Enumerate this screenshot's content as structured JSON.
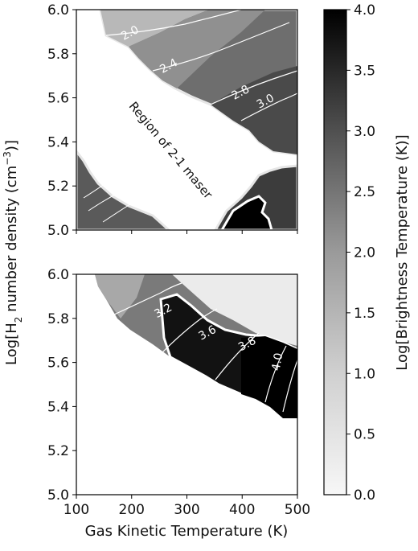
{
  "chart_data": [
    {
      "type": "heatmap",
      "panel": "top",
      "xlim": [
        100,
        500
      ],
      "ylim": [
        5.0,
        6.0
      ],
      "x_ticks": [],
      "y_ticks": [
        "5.0",
        "5.2",
        "5.4",
        "5.6",
        "5.8",
        "6.0"
      ],
      "contour_labels": [
        {
          "text": "2.0",
          "x": 200,
          "y": 5.88
        },
        {
          "text": "2.4",
          "x": 270,
          "y": 5.73
        },
        {
          "text": "2.8",
          "x": 400,
          "y": 5.61
        },
        {
          "text": "3.0",
          "x": 445,
          "y": 5.57
        }
      ],
      "annotation": {
        "text": "Region of 2-1 maser",
        "x": 265,
        "y": 5.35
      },
      "levels": {
        "upper_right_band": 2.4,
        "lower_left_corner": 2.2,
        "lower_right_corner": 4.0,
        "maser_region": 0.0
      }
    },
    {
      "type": "heatmap",
      "panel": "bottom",
      "xlim": [
        100,
        500
      ],
      "ylim": [
        5.0,
        6.0
      ],
      "x_ticks": [
        "100",
        "200",
        "300",
        "400",
        "500"
      ],
      "y_ticks": [
        "5.0",
        "5.2",
        "5.4",
        "5.6",
        "5.8",
        "6.0"
      ],
      "contour_labels": [
        {
          "text": "3.2",
          "x": 260,
          "y": 5.82
        },
        {
          "text": "3.6",
          "x": 340,
          "y": 5.72
        },
        {
          "text": "3.8",
          "x": 412,
          "y": 5.67
        },
        {
          "text": "4.0",
          "x": 470,
          "y": 5.6
        }
      ],
      "levels": {
        "upper_band": 3.6,
        "upper_right_plateau": 0.5,
        "lower_region": 0.0
      }
    }
  ],
  "labels": {
    "xlabel": "Gas Kinetic Temperature (K)",
    "ylabel_prefix": "Log[H",
    "ylabel_sub": "2",
    "ylabel_mid": " number density (cm",
    "ylabel_sup": "−3",
    "ylabel_suffix": ")]",
    "colorbar_label": "Log[Brightness Temperature (K)]"
  },
  "colorbar": {
    "range": [
      0.0,
      4.0
    ],
    "ticks": [
      "0.0",
      "0.5",
      "1.0",
      "1.5",
      "2.0",
      "2.5",
      "3.0",
      "3.5",
      "4.0"
    ]
  }
}
